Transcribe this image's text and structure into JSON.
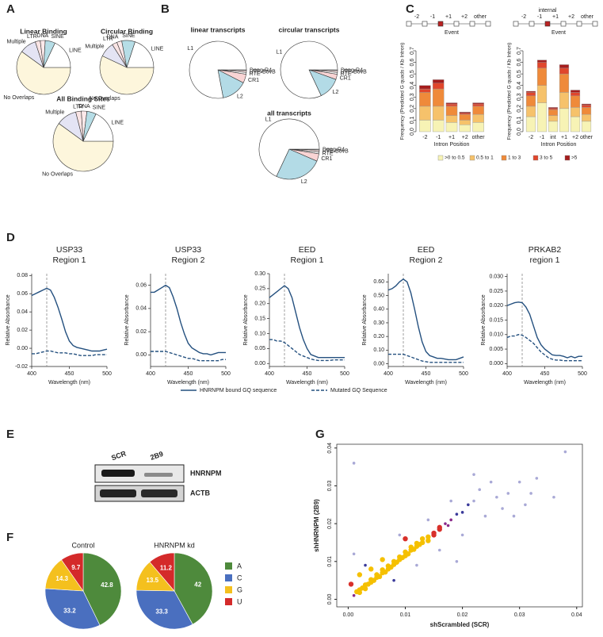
{
  "panel_labels": [
    "A",
    "B",
    "C",
    "D",
    "E",
    "F",
    "G"
  ],
  "blot": {
    "lanes": [
      "SCR",
      "2B9"
    ],
    "proteins": [
      "HNRNPM",
      "ACTB"
    ]
  },
  "chart_data": [
    {
      "type": "pie",
      "title": "Linear Binding",
      "start": "right",
      "labels": "outside",
      "categories": [
        "No Overlaps",
        "Multiple",
        "LTR",
        "DNA",
        "SINE",
        "LINE"
      ],
      "values": [
        60,
        10,
        3,
        3,
        6,
        18
      ],
      "colors": [
        "#fdf6dc",
        "#e4e4f4",
        "#f9e4e4",
        "#fde9ea",
        "#b6dde6",
        "#ffffff"
      ]
    },
    {
      "type": "pie",
      "title": "Circular Binding",
      "start": "right",
      "labels": "outside",
      "categories": [
        "No Overlaps",
        "Multiple",
        "LTR",
        "DNA",
        "SINE",
        "LINE"
      ],
      "values": [
        57,
        9,
        3,
        3,
        8,
        20
      ],
      "colors": [
        "#fdf6dc",
        "#e4e4f4",
        "#f9e4e4",
        "#fde9ea",
        "#b6dde6",
        "#ffffff"
      ]
    },
    {
      "type": "pie",
      "title": "All Binding Sites",
      "start": "right",
      "labels": "outside",
      "categories": [
        "No Overlaps",
        "Multiple",
        "LTR",
        "DNA",
        "SINE",
        "LINE"
      ],
      "values": [
        60,
        11,
        3,
        3,
        5,
        18
      ],
      "colors": [
        "#fdf6dc",
        "#e4e4f4",
        "#f9e4e4",
        "#fde9ea",
        "#b6dde6",
        "#ffffff"
      ]
    },
    {
      "type": "pie",
      "title": "linear transcripts",
      "start": "right",
      "labels": "outside",
      "categories": [
        "Dong-R4",
        "RTE-BovB",
        "RTE",
        "CR1",
        "L2",
        "L1"
      ],
      "values": [
        0.5,
        1,
        1,
        5,
        14.5,
        78
      ],
      "colors": [
        "#ffffff",
        "#fce6e6",
        "#ffffff",
        "#f9d4d4",
        "#b3dbe6",
        "#ffffff"
      ]
    },
    {
      "type": "pie",
      "title": "circular transcripts",
      "start": "right",
      "labels": "outside",
      "categories": [
        "Dong-R4",
        "RTE-BovB",
        "RTE",
        "CR1",
        "L2",
        "L1"
      ],
      "values": [
        0.5,
        1,
        1,
        3,
        12.5,
        82
      ],
      "colors": [
        "#ffffff",
        "#fce6e6",
        "#ffffff",
        "#f9d4d4",
        "#b3dbe6",
        "#ffffff"
      ]
    },
    {
      "type": "pie",
      "title": "all transcripts",
      "start": "right",
      "labels": "outside",
      "categories": [
        "Dong-R4",
        "RTE-BovB",
        "RTE",
        "CR1",
        "L2",
        "L1"
      ],
      "values": [
        0.5,
        1,
        1,
        4,
        25.5,
        68
      ],
      "colors": [
        "#ffffff",
        "#fce6e6",
        "#ffffff",
        "#f9d4d4",
        "#b3dbe6",
        "#ffffff"
      ]
    },
    {
      "type": "stacked_bar",
      "ylabel": "Frequency (Predicted G quads / Kb Intron)",
      "xlabel": "Intron Position",
      "ylim": [
        0,
        0.7
      ],
      "yticks": [
        {
          "value": 0,
          "label": "0.0"
        },
        0.1,
        0.2,
        0.3,
        0.4,
        0.5,
        0.6,
        0.7
      ],
      "series": [
        {
          "name": ">0 to 0.5",
          "color": "#f7f3b5"
        },
        {
          "name": "0.5 to 1",
          "color": "#f6c26b"
        },
        {
          "name": "1 to 3",
          "color": "#ef8a3a"
        },
        {
          "name": "3 to 5",
          "color": "#e0462c"
        },
        {
          "name": ">5",
          "color": "#a51d1d"
        }
      ],
      "panels": [
        {
          "categories": [
            "-2",
            "-1",
            "+1",
            "+2",
            "other"
          ],
          "diagram": [
            "-2",
            "-1",
            "+1",
            "+2",
            "other"
          ],
          "event": "Event",
          "values": [
            [
              0.1,
              0.1,
              0.08,
              0.06,
              0.08
            ],
            [
              0.12,
              0.12,
              0.06,
              0.04,
              0.07
            ],
            [
              0.12,
              0.15,
              0.08,
              0.05,
              0.07
            ],
            [
              0.03,
              0.05,
              0.02,
              0.01,
              0.02
            ],
            [
              0.03,
              0.03,
              0.01,
              0.01,
              0.01
            ]
          ]
        },
        {
          "categories": [
            "-2",
            "-1",
            "int",
            "+1",
            "+2",
            "other"
          ],
          "diagram": [
            "-2",
            "-1",
            "+1",
            "+2",
            "other"
          ],
          "event": "Event",
          "internal": "internal",
          "values": [
            [
              0.13,
              0.25,
              0.09,
              0.2,
              0.13,
              0.09
            ],
            [
              0.09,
              0.15,
              0.05,
              0.14,
              0.08,
              0.06
            ],
            [
              0.09,
              0.15,
              0.05,
              0.16,
              0.1,
              0.06
            ],
            [
              0.03,
              0.05,
              0.01,
              0.05,
              0.03,
              0.02
            ],
            [
              0.01,
              0.02,
              0.01,
              0.03,
              0.02,
              0.01
            ]
          ]
        }
      ]
    },
    {
      "type": "line",
      "xlabel": "Wavelength (nm)",
      "ylabel": "Relative Absorbance",
      "x": [
        400,
        405,
        410,
        415,
        420,
        425,
        430,
        435,
        440,
        445,
        450,
        455,
        460,
        465,
        470,
        475,
        480,
        485,
        490,
        495,
        500
      ],
      "xlim": [
        400,
        500
      ],
      "xticks": [
        400,
        450,
        500
      ],
      "vline": 420,
      "series": [
        {
          "name": "HNRNPM bound GQ sequence",
          "color": "#24507f",
          "dash": "solid"
        },
        {
          "name": "Mutated GQ Sequence",
          "color": "#24507f",
          "dash": "dashed"
        }
      ],
      "panels": [
        {
          "title": "USP33",
          "subtitle": "Region 1",
          "ylim": [
            -0.02,
            0.082
          ],
          "yticks": [
            -0.02,
            {
              "value": 0,
              "label": "0.00"
            },
            0.02,
            0.04,
            0.06,
            0.08
          ],
          "values": [
            [
              0.058,
              0.06,
              0.062,
              0.064,
              0.066,
              0.064,
              0.056,
              0.045,
              0.032,
              0.018,
              0.008,
              0.003,
              0.001,
              0,
              -0.001,
              -0.002,
              -0.003,
              -0.003,
              -0.003,
              -0.002,
              -0.001
            ],
            [
              -0.006,
              -0.006,
              -0.005,
              -0.004,
              -0.003,
              -0.003,
              -0.004,
              -0.005,
              -0.005,
              -0.005,
              -0.006,
              -0.006,
              -0.007,
              -0.008,
              -0.008,
              -0.008,
              -0.008,
              -0.007,
              -0.007,
              -0.007,
              -0.007
            ]
          ]
        },
        {
          "title": "USP33",
          "subtitle": "Region 2",
          "ylim": [
            -0.01,
            0.07
          ],
          "yticks": [
            {
              "value": 0,
              "label": "0.00"
            },
            0.02,
            0.04,
            0.06
          ],
          "values": [
            [
              0.054,
              0.054,
              0.056,
              0.058,
              0.06,
              0.058,
              0.05,
              0.04,
              0.028,
              0.018,
              0.01,
              0.006,
              0.004,
              0.002,
              0.001,
              0.001,
              0,
              0.001,
              0.002,
              0.002,
              0.002
            ],
            [
              0.003,
              0.003,
              0.003,
              0.003,
              0.003,
              0.002,
              0.001,
              0,
              -0.001,
              -0.002,
              -0.003,
              -0.003,
              -0.004,
              -0.005,
              -0.005,
              -0.005,
              -0.005,
              -0.005,
              -0.005,
              -0.004,
              -0.004
            ]
          ]
        },
        {
          "title": "EED",
          "subtitle": "Region 1",
          "ylim": [
            -0.01,
            0.3
          ],
          "yticks": [
            {
              "value": 0,
              "label": "0.00"
            },
            0.05,
            {
              "value": 0.1,
              "label": "0.10"
            },
            0.15,
            {
              "value": 0.2,
              "label": "0.20"
            },
            0.25,
            {
              "value": 0.3,
              "label": "0.30"
            }
          ],
          "values": [
            [
              0.22,
              0.23,
              0.24,
              0.25,
              0.26,
              0.25,
              0.22,
              0.17,
              0.12,
              0.08,
              0.05,
              0.03,
              0.025,
              0.02,
              0.02,
              0.02,
              0.02,
              0.02,
              0.02,
              0.02,
              0.02
            ],
            [
              0.08,
              0.08,
              0.075,
              0.075,
              0.07,
              0.06,
              0.05,
              0.04,
              0.03,
              0.025,
              0.02,
              0.015,
              0.012,
              0.01,
              0.01,
              0.01,
              0.01,
              0.012,
              0.012,
              0.012,
              0.012
            ]
          ]
        },
        {
          "title": "EED",
          "subtitle": "Region 2",
          "ylim": [
            -0.02,
            0.66
          ],
          "yticks": [
            {
              "value": 0,
              "label": "0.00"
            },
            {
              "value": 0.1,
              "label": "0.10"
            },
            {
              "value": 0.2,
              "label": "0.20"
            },
            {
              "value": 0.3,
              "label": "0.30"
            },
            {
              "value": 0.4,
              "label": "0.40"
            },
            {
              "value": 0.5,
              "label": "0.50"
            },
            {
              "value": 0.6,
              "label": "0.60"
            }
          ],
          "values": [
            [
              0.54,
              0.55,
              0.57,
              0.6,
              0.62,
              0.6,
              0.52,
              0.4,
              0.27,
              0.16,
              0.09,
              0.06,
              0.05,
              0.04,
              0.04,
              0.035,
              0.03,
              0.03,
              0.03,
              0.04,
              0.05
            ],
            [
              0.07,
              0.07,
              0.07,
              0.07,
              0.07,
              0.06,
              0.05,
              0.04,
              0.03,
              0.02,
              0.015,
              0.01,
              0.01,
              0.01,
              0.01,
              0.01,
              0.01,
              0.01,
              0.01,
              0.01,
              0.01
            ]
          ]
        },
        {
          "title": "PRKAB2",
          "subtitle": "region 1",
          "ylim": [
            -0.001,
            0.031
          ],
          "yticks": [
            {
              "value": 0,
              "label": "0.000"
            },
            0.005,
            {
              "value": 0.01,
              "label": "0.010"
            },
            0.015,
            {
              "value": 0.02,
              "label": "0.020"
            },
            0.025,
            {
              "value": 0.03,
              "label": "0.030"
            }
          ],
          "values": [
            [
              0.02,
              0.0205,
              0.021,
              0.0212,
              0.021,
              0.0195,
              0.017,
              0.013,
              0.009,
              0.0065,
              0.005,
              0.004,
              0.003,
              0.0028,
              0.0028,
              0.0025,
              0.002,
              0.0025,
              0.002,
              0.0025,
              0.0025
            ],
            [
              0.009,
              0.0095,
              0.0095,
              0.01,
              0.0098,
              0.009,
              0.008,
              0.007,
              0.0055,
              0.004,
              0.003,
              0.002,
              0.0015,
              0.0012,
              0.0012,
              0.001,
              0.001,
              0.001,
              0.001,
              0.001,
              0.001
            ]
          ]
        }
      ]
    },
    {
      "type": "pie",
      "start": "top",
      "labels": "inside",
      "categories": [
        "A",
        "C",
        "G",
        "U"
      ],
      "colors": [
        "#4e8a3c",
        "#4a6fbf",
        "#f4c01e",
        "#d42a2a"
      ],
      "series": [
        {
          "name": "Control",
          "values": [
            42.8,
            33.2,
            14.3,
            9.7
          ]
        },
        {
          "name": "HNRNPM kd",
          "values": [
            42.0,
            33.3,
            13.5,
            11.2
          ]
        }
      ]
    },
    {
      "type": "scatter",
      "xlabel": "shScrambled (SCR)",
      "ylabel": "shHNRNPM (2B9)",
      "xlim": [
        -0.002,
        0.041
      ],
      "ylim": [
        -0.002,
        0.041
      ],
      "xticks": [
        {
          "value": 0,
          "label": "0.00"
        },
        0.01,
        0.02,
        0.03,
        0.04
      ],
      "yticks": [
        {
          "value": 0,
          "label": "0.00"
        },
        0.01,
        0.02,
        0.03,
        0.04
      ],
      "x": [
        0.001,
        0.0015,
        0.002,
        0.002,
        0.0025,
        0.003,
        0.003,
        0.0035,
        0.004,
        0.004,
        0.0045,
        0.005,
        0.005,
        0.0055,
        0.006,
        0.006,
        0.0065,
        0.007,
        0.007,
        0.0075,
        0.008,
        0.008,
        0.0085,
        0.009,
        0.009,
        0.0095,
        0.01,
        0.01,
        0.0105,
        0.011,
        0.011,
        0.0115,
        0.012,
        0.012,
        0.0125,
        0.013,
        0.013,
        0.014,
        0.014,
        0.015,
        0.015,
        0.016,
        0.016,
        0.017,
        0.0175,
        0.018,
        0.019,
        0.02,
        0.021,
        0.022,
        0.004,
        0.008,
        0.006,
        0.012,
        0.01,
        0.016,
        0.014,
        0.02,
        0.018,
        0.024,
        0.023,
        0.026,
        0.025,
        0.028,
        0.003,
        0.002,
        0.0005,
        0.001,
        0.009,
        0.022,
        0.027,
        0.03,
        0.031,
        0.033,
        0.032,
        0.038,
        0.001,
        0.036,
        0.019,
        0.029
      ],
      "y": [
        0.001,
        0.002,
        0.0018,
        0.0025,
        0.003,
        0.0028,
        0.0038,
        0.004,
        0.0045,
        0.0052,
        0.005,
        0.0058,
        0.0065,
        0.006,
        0.007,
        0.0078,
        0.0072,
        0.008,
        0.0088,
        0.0085,
        0.0092,
        0.01,
        0.0098,
        0.0105,
        0.0112,
        0.011,
        0.0115,
        0.0125,
        0.012,
        0.013,
        0.0138,
        0.0132,
        0.014,
        0.0148,
        0.0145,
        0.015,
        0.016,
        0.0165,
        0.0155,
        0.0175,
        0.017,
        0.0185,
        0.019,
        0.02,
        0.0195,
        0.021,
        0.0225,
        0.023,
        0.025,
        0.026,
        0.008,
        0.005,
        0.0105,
        0.009,
        0.016,
        0.013,
        0.021,
        0.017,
        0.026,
        0.022,
        0.029,
        0.027,
        0.031,
        0.028,
        0.009,
        0.0065,
        0.004,
        0.012,
        0.017,
        0.033,
        0.024,
        0.031,
        0.025,
        0.032,
        0.028,
        0.039,
        0.036,
        0.027,
        0.01,
        0.022
      ]
    }
  ]
}
